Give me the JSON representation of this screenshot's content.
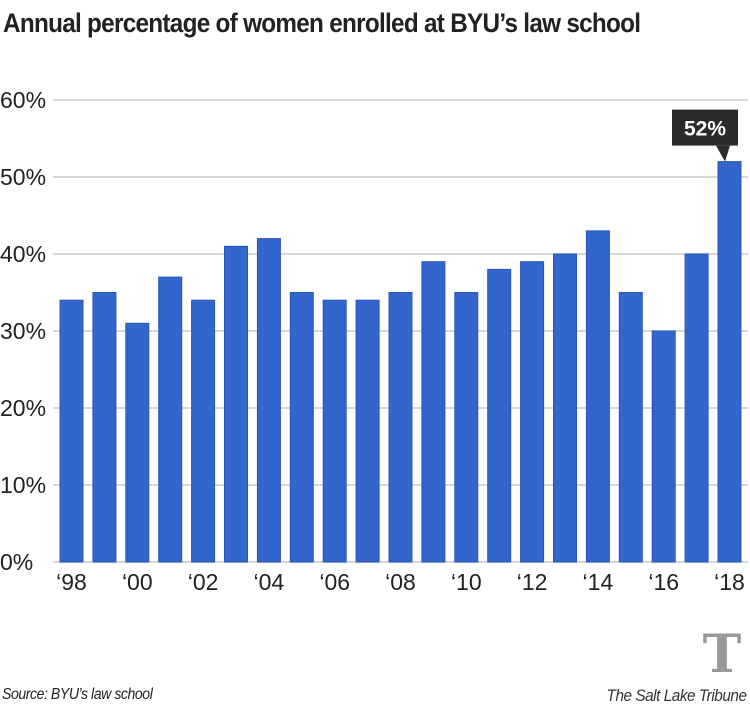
{
  "chart_data": {
    "type": "bar",
    "title": "Annual percentage of women enrolled at BYU’s law school",
    "xlabel": "",
    "ylabel": "",
    "categories": [
      "1998",
      "1999",
      "2000",
      "2001",
      "2002",
      "2003",
      "2004",
      "2005",
      "2006",
      "2007",
      "2008",
      "2009",
      "2010",
      "2011",
      "2012",
      "2013",
      "2014",
      "2015",
      "2016",
      "2017",
      "2018"
    ],
    "values": [
      34,
      35,
      31,
      37,
      34,
      41,
      42,
      35,
      34,
      34,
      35,
      39,
      35,
      38,
      39,
      40,
      43,
      35,
      30,
      40,
      52
    ],
    "x_tick_labels": [
      "‘98",
      "",
      "‘00",
      "",
      "‘02",
      "",
      "‘04",
      "",
      "‘06",
      "",
      "‘08",
      "",
      "‘10",
      "",
      "‘12",
      "",
      "‘14",
      "",
      "‘16",
      "",
      "‘18"
    ],
    "y_ticks": [
      0,
      10,
      20,
      30,
      40,
      50,
      60
    ],
    "y_tick_labels": [
      "0%",
      "10%",
      "20%",
      "30%",
      "40%",
      "50%",
      "60%"
    ],
    "ylim": [
      0,
      60
    ],
    "grid": true,
    "legend": "none",
    "annotation": {
      "category": "2018",
      "label": "52%"
    },
    "colors": {
      "bar": "#3366cc",
      "bar_edge": "#2955b8",
      "grid": "#cccccc",
      "annotation_bg": "#2b2b2b",
      "annotation_text": "#ffffff"
    }
  },
  "footer": {
    "source": "Source: BYU’s law school",
    "brand": "The Salt Lake Tribune",
    "logo_glyph": "T"
  }
}
